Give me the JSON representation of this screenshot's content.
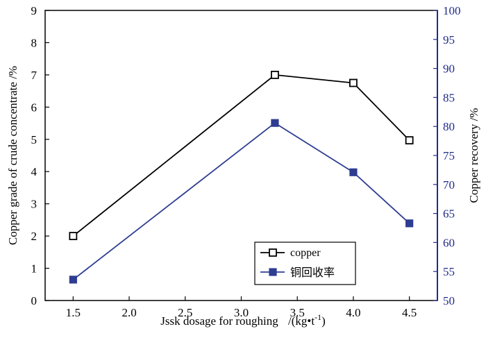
{
  "chart_data": {
    "type": "line",
    "title": "",
    "x": [
      1.5,
      3.3,
      4.0,
      4.5
    ],
    "xlabel": "Jssk dosage for roughing",
    "xlabel_unit": "/(kg•t",
    "xlabel_sup": "-1",
    "xlabel_close": ")",
    "xlim": [
      1.25,
      4.75
    ],
    "xticks": [
      "1.5",
      "2.0",
      "2.5",
      "3.0",
      "3.5",
      "4.0",
      "4.5"
    ],
    "ylabel_left": "Copper grade of crude concentrate /%",
    "ylim_left": [
      0,
      9
    ],
    "yticks_left": [
      "0",
      "1",
      "2",
      "3",
      "4",
      "5",
      "6",
      "7",
      "8",
      "9"
    ],
    "ylabel_right": "Copper recovery /%",
    "ylim_right": [
      50,
      100
    ],
    "yticks_right": [
      "50",
      "55",
      "60",
      "65",
      "70",
      "75",
      "80",
      "85",
      "90",
      "95",
      "100"
    ],
    "series": [
      {
        "name": "copper",
        "axis": "left",
        "values": [
          2.0,
          7.0,
          6.75,
          4.97
        ],
        "marker": "open-square",
        "color": "#000000"
      },
      {
        "name": "铜回收率",
        "axis": "right",
        "values": [
          53.6,
          80.6,
          72.1,
          63.3
        ],
        "marker": "filled-square",
        "color": "#2e3d91"
      }
    ],
    "legend_position": "center-right"
  },
  "colors": {
    "left_axis": "#000000",
    "right_axis": "#1f2a8a",
    "series_copper": "#000000",
    "series_recovery": "#2e3d91"
  }
}
